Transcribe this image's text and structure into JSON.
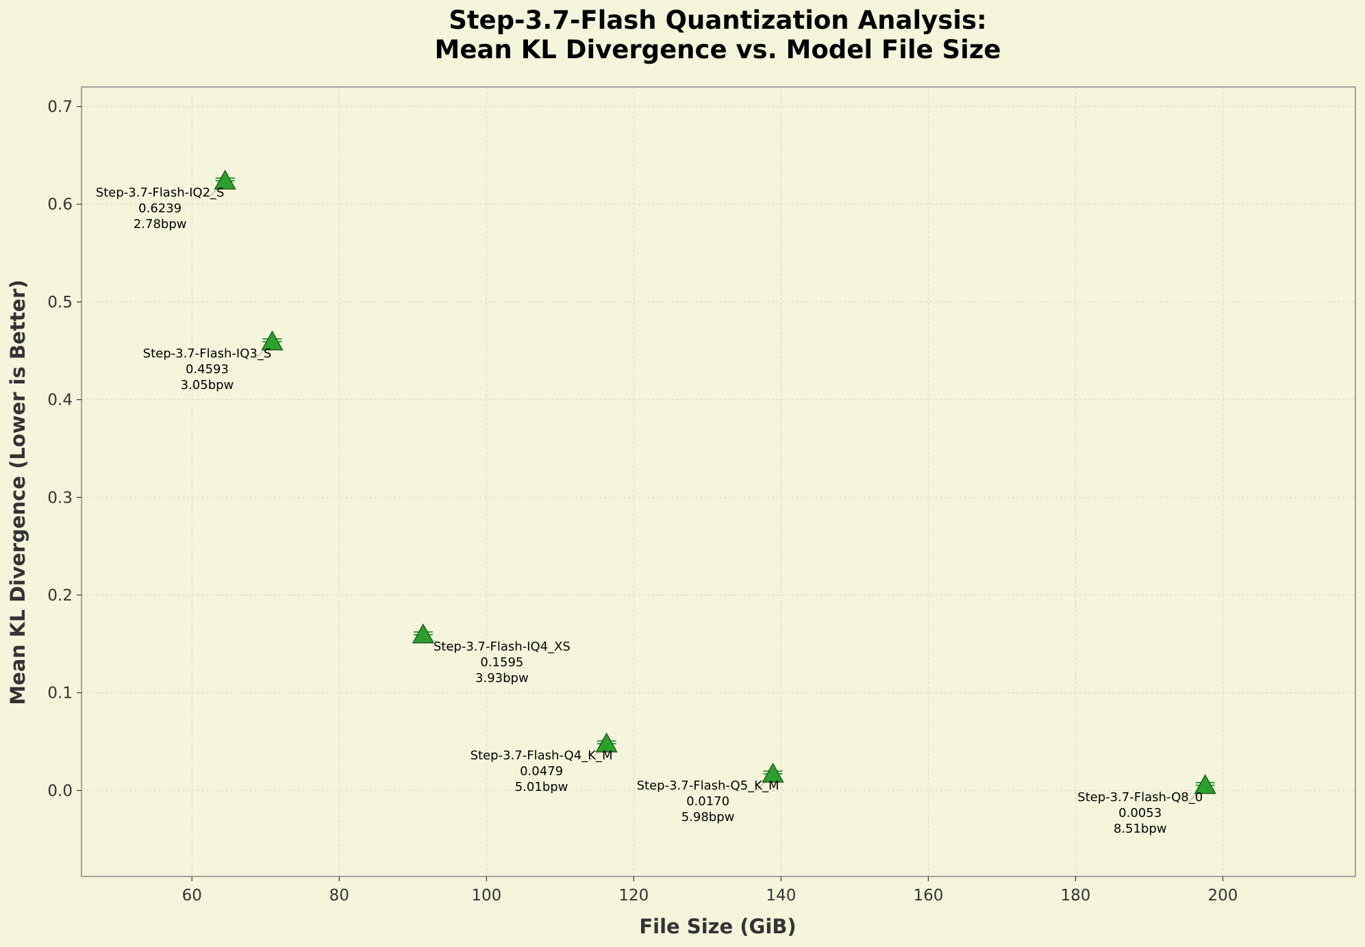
{
  "colors": {
    "background": "#f5f5dc",
    "plot_background": "#f5f5dc",
    "marker_fill": "#2ca02c",
    "marker_edge": "#1a4d1a",
    "grid": "#d9d9c7",
    "frame": "#888888",
    "text": "#333333"
  },
  "chart_data": {
    "type": "scatter",
    "title": "Step-3.7-Flash Quantization Analysis:",
    "subtitle": "Mean KL Divergence vs. Model File Size",
    "xlabel": "File Size (GiB)",
    "ylabel": "Mean KL Divergence (Lower is Better)",
    "xlim": [
      45,
      218
    ],
    "ylim": [
      -0.088,
      0.72
    ],
    "x_ticks": [
      60,
      80,
      100,
      120,
      140,
      160,
      180,
      200
    ],
    "x_tick_labels": [
      "60",
      "80",
      "100",
      "120",
      "140",
      "160",
      "180",
      "200"
    ],
    "y_ticks": [
      0.0,
      0.1,
      0.2,
      0.3,
      0.4,
      0.5,
      0.6,
      0.7
    ],
    "y_tick_labels": [
      "0.0",
      "0.1",
      "0.2",
      "0.3",
      "0.4",
      "0.5",
      "0.6",
      "0.7"
    ],
    "grid": true,
    "marker": "triangle",
    "points": [
      {
        "name": "Step-3.7-Flash-IQ2_S",
        "x": 64.5,
        "y": 0.6239,
        "value_label": "0.6239",
        "bpw_label": "2.78bpw",
        "label_side": "left"
      },
      {
        "name": "Step-3.7-Flash-IQ3_S",
        "x": 70.9,
        "y": 0.4593,
        "value_label": "0.4593",
        "bpw_label": "3.05bpw",
        "label_side": "left"
      },
      {
        "name": "Step-3.7-Flash-IQ4_XS",
        "x": 91.4,
        "y": 0.1595,
        "value_label": "0.1595",
        "bpw_label": "3.93bpw",
        "label_side": "right"
      },
      {
        "name": "Step-3.7-Flash-Q4_K_M",
        "x": 116.3,
        "y": 0.0479,
        "value_label": "0.0479",
        "bpw_label": "5.01bpw",
        "label_side": "left"
      },
      {
        "name": "Step-3.7-Flash-Q5_K_M",
        "x": 138.9,
        "y": 0.017,
        "value_label": "0.0170",
        "bpw_label": "5.98bpw",
        "label_side": "left"
      },
      {
        "name": "Step-3.7-Flash-Q8_0",
        "x": 197.6,
        "y": 0.0053,
        "value_label": "0.0053",
        "bpw_label": "8.51bpw",
        "label_side": "left"
      }
    ]
  }
}
